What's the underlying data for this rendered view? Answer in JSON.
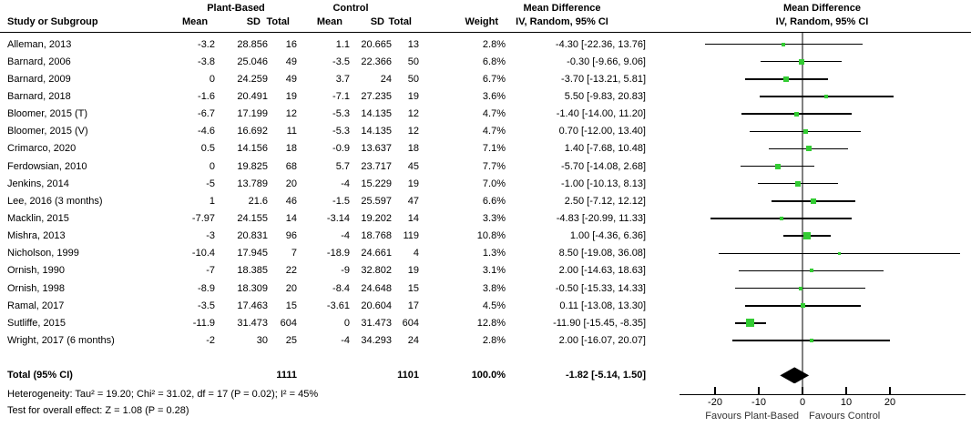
{
  "groups": {
    "plant": "Plant-Based",
    "control": "Control"
  },
  "columns": {
    "study": "Study or Subgroup",
    "mean": "Mean",
    "sd": "SD",
    "total": "Total",
    "weight": "Weight"
  },
  "md_header": {
    "line1": "Mean Difference",
    "line2": "IV, Random, 95% CI"
  },
  "plot_header": {
    "line1": "Mean Difference",
    "line2": "IV, Random, 95% CI"
  },
  "studies": [
    {
      "name": "Alleman, 2013",
      "pb_mean": "-3.2",
      "pb_sd": "28.856",
      "pb_total": "16",
      "c_mean": "1.1",
      "c_sd": "20.665",
      "c_total": "13",
      "weight": "2.8%",
      "ci": "-4.30 [-22.36, 13.76]"
    },
    {
      "name": "Barnard, 2006",
      "pb_mean": "-3.8",
      "pb_sd": "25.046",
      "pb_total": "49",
      "c_mean": "-3.5",
      "c_sd": "22.366",
      "c_total": "50",
      "weight": "6.8%",
      "ci": "-0.30 [-9.66, 9.06]"
    },
    {
      "name": "Barnard, 2009",
      "pb_mean": "0",
      "pb_sd": "24.259",
      "pb_total": "49",
      "c_mean": "3.7",
      "c_sd": "24",
      "c_total": "50",
      "weight": "6.7%",
      "ci": "-3.70 [-13.21, 5.81]"
    },
    {
      "name": "Barnard, 2018",
      "pb_mean": "-1.6",
      "pb_sd": "20.491",
      "pb_total": "19",
      "c_mean": "-7.1",
      "c_sd": "27.235",
      "c_total": "19",
      "weight": "3.6%",
      "ci": "5.50 [-9.83, 20.83]"
    },
    {
      "name": "Bloomer, 2015 (T)",
      "pb_mean": "-6.7",
      "pb_sd": "17.199",
      "pb_total": "12",
      "c_mean": "-5.3",
      "c_sd": "14.135",
      "c_total": "12",
      "weight": "4.7%",
      "ci": "-1.40 [-14.00, 11.20]"
    },
    {
      "name": "Bloomer, 2015 (V)",
      "pb_mean": "-4.6",
      "pb_sd": "16.692",
      "pb_total": "11",
      "c_mean": "-5.3",
      "c_sd": "14.135",
      "c_total": "12",
      "weight": "4.7%",
      "ci": "0.70 [-12.00, 13.40]"
    },
    {
      "name": "Crimarco, 2020",
      "pb_mean": "0.5",
      "pb_sd": "14.156",
      "pb_total": "18",
      "c_mean": "-0.9",
      "c_sd": "13.637",
      "c_total": "18",
      "weight": "7.1%",
      "ci": "1.40 [-7.68, 10.48]"
    },
    {
      "name": "Ferdowsian, 2010",
      "pb_mean": "0",
      "pb_sd": "19.825",
      "pb_total": "68",
      "c_mean": "5.7",
      "c_sd": "23.717",
      "c_total": "45",
      "weight": "7.7%",
      "ci": "-5.70 [-14.08, 2.68]"
    },
    {
      "name": "Jenkins, 2014",
      "pb_mean": "-5",
      "pb_sd": "13.789",
      "pb_total": "20",
      "c_mean": "-4",
      "c_sd": "15.229",
      "c_total": "19",
      "weight": "7.0%",
      "ci": "-1.00 [-10.13, 8.13]"
    },
    {
      "name": "Lee, 2016 (3 months)",
      "pb_mean": "1",
      "pb_sd": "21.6",
      "pb_total": "46",
      "c_mean": "-1.5",
      "c_sd": "25.597",
      "c_total": "47",
      "weight": "6.6%",
      "ci": "2.50 [-7.12, 12.12]"
    },
    {
      "name": "Macklin, 2015",
      "pb_mean": "-7.97",
      "pb_sd": "24.155",
      "pb_total": "14",
      "c_mean": "-3.14",
      "c_sd": "19.202",
      "c_total": "14",
      "weight": "3.3%",
      "ci": "-4.83 [-20.99, 11.33]"
    },
    {
      "name": "Mishra, 2013",
      "pb_mean": "-3",
      "pb_sd": "20.831",
      "pb_total": "96",
      "c_mean": "-4",
      "c_sd": "18.768",
      "c_total": "119",
      "weight": "10.8%",
      "ci": "1.00 [-4.36, 6.36]"
    },
    {
      "name": "Nicholson, 1999",
      "pb_mean": "-10.4",
      "pb_sd": "17.945",
      "pb_total": "7",
      "c_mean": "-18.9",
      "c_sd": "24.661",
      "c_total": "4",
      "weight": "1.3%",
      "ci": "8.50 [-19.08, 36.08]"
    },
    {
      "name": "Ornish, 1990",
      "pb_mean": "-7",
      "pb_sd": "18.385",
      "pb_total": "22",
      "c_mean": "-9",
      "c_sd": "32.802",
      "c_total": "19",
      "weight": "3.1%",
      "ci": "2.00 [-14.63, 18.63]"
    },
    {
      "name": "Ornish, 1998",
      "pb_mean": "-8.9",
      "pb_sd": "18.309",
      "pb_total": "20",
      "c_mean": "-8.4",
      "c_sd": "24.648",
      "c_total": "15",
      "weight": "3.8%",
      "ci": "-0.50 [-15.33, 14.33]"
    },
    {
      "name": "Ramal, 2017",
      "pb_mean": "-3.5",
      "pb_sd": "17.463",
      "pb_total": "15",
      "c_mean": "-3.61",
      "c_sd": "20.604",
      "c_total": "17",
      "weight": "4.5%",
      "ci": "0.11 [-13.08, 13.30]"
    },
    {
      "name": "Sutliffe, 2015",
      "pb_mean": "-11.9",
      "pb_sd": "31.473",
      "pb_total": "604",
      "c_mean": "0",
      "c_sd": "31.473",
      "c_total": "604",
      "weight": "12.8%",
      "ci": "-11.90 [-15.45, -8.35]"
    },
    {
      "name": "Wright, 2017 (6 months)",
      "pb_mean": "-2",
      "pb_sd": "30",
      "pb_total": "25",
      "c_mean": "-4",
      "c_sd": "34.293",
      "c_total": "24",
      "weight": "2.8%",
      "ci": "2.00 [-16.07, 20.07]"
    }
  ],
  "total_row": {
    "label": "Total (95% CI)",
    "pb_total": "1111",
    "c_total": "1101",
    "weight": "100.0%",
    "ci": "-1.82 [-5.14, 1.50]"
  },
  "footnotes": {
    "heterogeneity": "Heterogeneity: Tau² = 19.20; Chi² = 31.02, df = 17 (P = 0.02); I² = 45%",
    "overall_effect": "Test for overall effect: Z = 1.08 (P = 0.28)"
  },
  "axis": {
    "ticks": [
      -20,
      -10,
      0,
      10,
      20
    ],
    "favours_left": "Favours Plant-Based",
    "favours_right": "Favours Control"
  },
  "colors": {
    "marker_green": "#33CC33",
    "zero_line_gray": "#808080",
    "diamond_black": "#000000"
  },
  "chart_data": {
    "type": "scatter",
    "subtype": "forest-plot",
    "effect_measure": "Mean Difference",
    "model": "IV, Random, 95% CI",
    "x_ticks": [
      -20,
      -10,
      0,
      10,
      20
    ],
    "favours_left": "Favours Plant-Based",
    "favours_right": "Favours Control",
    "studies": [
      {
        "name": "Alleman, 2013",
        "md": -4.3,
        "lo": -22.36,
        "hi": 13.76,
        "weight_pct": 2.8
      },
      {
        "name": "Barnard, 2006",
        "md": -0.3,
        "lo": -9.66,
        "hi": 9.06,
        "weight_pct": 6.8
      },
      {
        "name": "Barnard, 2009",
        "md": -3.7,
        "lo": -13.21,
        "hi": 5.81,
        "weight_pct": 6.7
      },
      {
        "name": "Barnard, 2018",
        "md": 5.5,
        "lo": -9.83,
        "hi": 20.83,
        "weight_pct": 3.6
      },
      {
        "name": "Bloomer, 2015 (T)",
        "md": -1.4,
        "lo": -14.0,
        "hi": 11.2,
        "weight_pct": 4.7
      },
      {
        "name": "Bloomer, 2015 (V)",
        "md": 0.7,
        "lo": -12.0,
        "hi": 13.4,
        "weight_pct": 4.7
      },
      {
        "name": "Crimarco, 2020",
        "md": 1.4,
        "lo": -7.68,
        "hi": 10.48,
        "weight_pct": 7.1
      },
      {
        "name": "Ferdowsian, 2010",
        "md": -5.7,
        "lo": -14.08,
        "hi": 2.68,
        "weight_pct": 7.7
      },
      {
        "name": "Jenkins, 2014",
        "md": -1.0,
        "lo": -10.13,
        "hi": 8.13,
        "weight_pct": 7.0
      },
      {
        "name": "Lee, 2016 (3 months)",
        "md": 2.5,
        "lo": -7.12,
        "hi": 12.12,
        "weight_pct": 6.6
      },
      {
        "name": "Macklin, 2015",
        "md": -4.83,
        "lo": -20.99,
        "hi": 11.33,
        "weight_pct": 3.3
      },
      {
        "name": "Mishra, 2013",
        "md": 1.0,
        "lo": -4.36,
        "hi": 6.36,
        "weight_pct": 10.8
      },
      {
        "name": "Nicholson, 1999",
        "md": 8.5,
        "lo": -19.08,
        "hi": 36.08,
        "weight_pct": 1.3
      },
      {
        "name": "Ornish, 1990",
        "md": 2.0,
        "lo": -14.63,
        "hi": 18.63,
        "weight_pct": 3.1
      },
      {
        "name": "Ornish, 1998",
        "md": -0.5,
        "lo": -15.33,
        "hi": 14.33,
        "weight_pct": 3.8
      },
      {
        "name": "Ramal, 2017",
        "md": 0.11,
        "lo": -13.08,
        "hi": 13.3,
        "weight_pct": 4.5
      },
      {
        "name": "Sutliffe, 2015",
        "md": -11.9,
        "lo": -15.45,
        "hi": -8.35,
        "weight_pct": 12.8
      },
      {
        "name": "Wright, 2017 (6 months)",
        "md": 2.0,
        "lo": -16.07,
        "hi": 20.07,
        "weight_pct": 2.8
      }
    ],
    "total": {
      "label": "Total (95% CI)",
      "md": -1.82,
      "lo": -5.14,
      "hi": 1.5,
      "weight_pct": 100.0
    },
    "heterogeneity": {
      "tau2": 19.2,
      "chi2": 31.02,
      "df": 17,
      "p": 0.02,
      "i2_pct": 45
    },
    "overall_effect": {
      "z": 1.08,
      "p": 0.28
    }
  }
}
